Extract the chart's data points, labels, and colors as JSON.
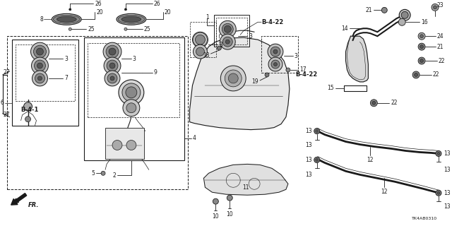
{
  "bg_color": "#ffffff",
  "line_color": "#1a1a1a",
  "fig_width": 6.4,
  "fig_height": 3.2,
  "dpi": 100,
  "labels": {
    "B_4_1": "B-4-1",
    "B_4_22_1": "B-4-22",
    "B_4_22_2": "B-4-22",
    "diagram_code": "TK4AB0310",
    "fr_label": "FR."
  },
  "font_size": 5.5,
  "font_size_bold": 6.0
}
